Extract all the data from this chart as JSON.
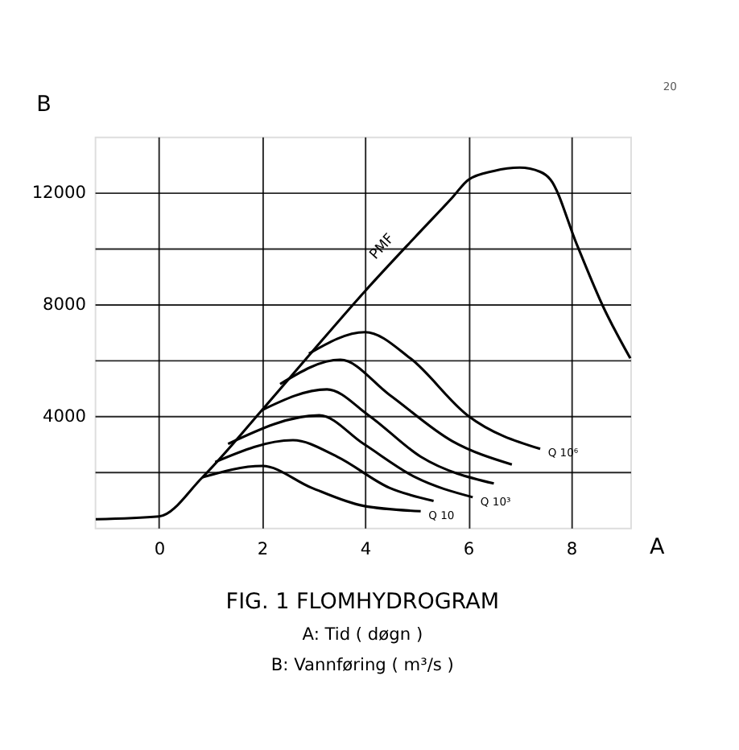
{
  "chart_data": {
    "type": "line",
    "title": "FIG. 1    FLOMHYDROGRAM",
    "xlabel": "A",
    "ylabel": "B",
    "annotations": [
      "20",
      "A:   Tid   ( døgn )",
      "B:   Vannføring  ( m³/s )",
      {
        "text": "PMF",
        "x": 4.75,
        "y": 9960
      }
    ],
    "xlim": [
      -1.25,
      9.15
    ],
    "ylim": [
      0,
      14000
    ],
    "xticks": [
      0,
      2,
      4,
      6,
      8
    ],
    "yticks": [
      {
        "value": 2000,
        "label": null
      },
      4000,
      {
        "value": 6000,
        "label": null
      },
      8000,
      {
        "value": 10000,
        "label": null
      },
      12000
    ],
    "grid": true,
    "line_style": "solid",
    "marker": "none",
    "series": [
      {
        "color": "#000000",
        "x": [
          -1.23,
          0,
          0.84,
          2,
          2.95,
          4,
          4.98,
          5.69,
          6.01,
          6.5,
          7,
          7.4,
          7.6,
          8.11,
          8.62,
          9.15
        ],
        "values": [
          300,
          400,
          1800,
          4210,
          6250,
          8470,
          10420,
          11810,
          12460,
          12770,
          12890,
          12740,
          12460,
          10140,
          7920,
          6060
        ]
      },
      {
        "name": "Q 10",
        "color": "#000000",
        "x": [
          0.84,
          2,
          2.96,
          3.97,
          5.08
        ],
        "values": [
          1800,
          2210,
          1430,
          780,
          590
        ]
      },
      {
        "color": "#000000",
        "x": [
          1.09,
          2.6,
          3.46,
          4.47,
          5.33
        ],
        "values": [
          2350,
          3130,
          2540,
          1430,
          960
        ]
      },
      {
        "name": "Q 10³",
        "color": "#000000",
        "x": [
          1.34,
          3.11,
          3.97,
          4.98,
          6.09
        ],
        "values": [
          3000,
          4020,
          3000,
          1800,
          1090
        ]
      },
      {
        "color": "#000000",
        "x": [
          2,
          3.26,
          4.07,
          5.08,
          6.5
        ],
        "values": [
          4210,
          4950,
          4020,
          2540,
          1580
        ]
      },
      {
        "color": "#000000",
        "x": [
          2.35,
          3.52,
          4.47,
          5.69,
          6.85
        ],
        "values": [
          5140,
          6010,
          4760,
          3100,
          2260
        ]
      },
      {
        "name": "Q 10⁶",
        "color": "#000000",
        "x": [
          2.91,
          4,
          4.88,
          5.99,
          7.4
        ],
        "values": [
          6230,
          7000,
          6060,
          4020,
          2820
        ]
      }
    ]
  }
}
